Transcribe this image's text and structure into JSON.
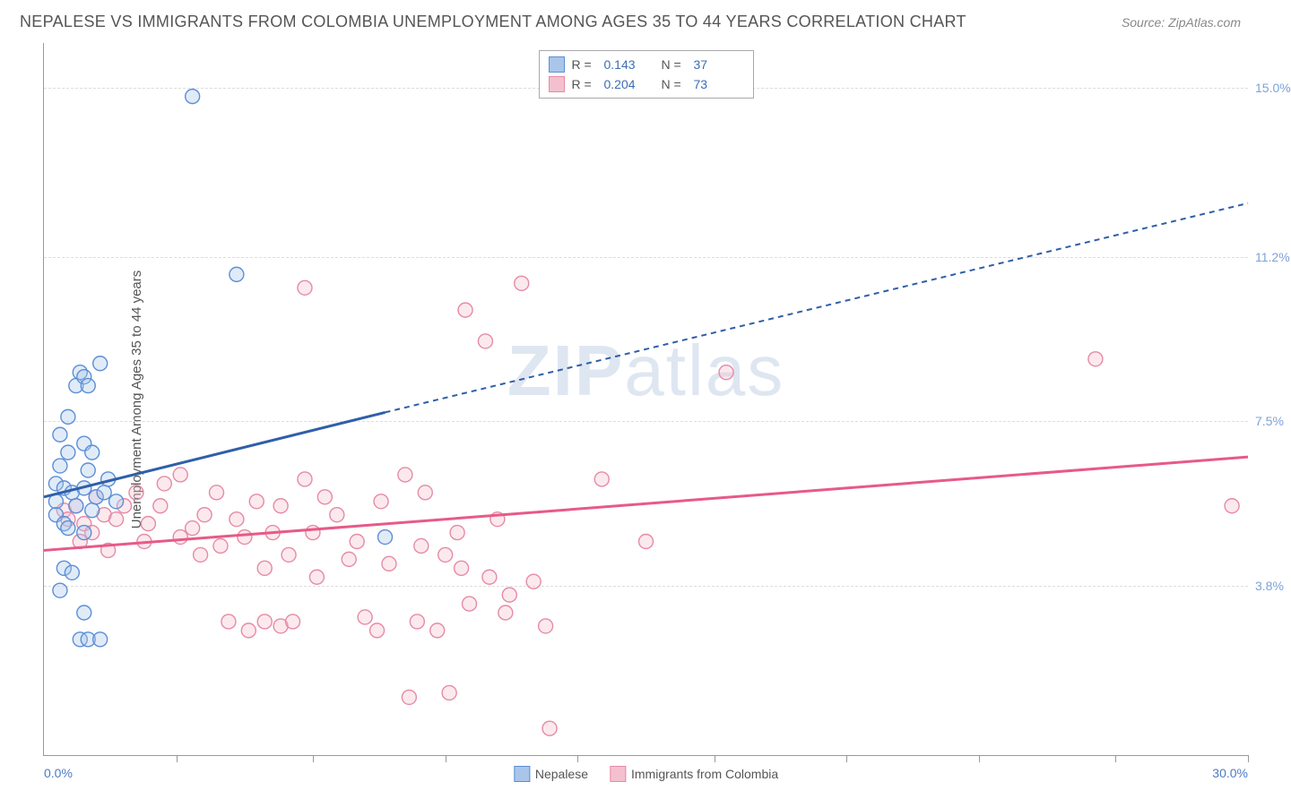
{
  "header": {
    "title": "NEPALESE VS IMMIGRANTS FROM COLOMBIA UNEMPLOYMENT AMONG AGES 35 TO 44 YEARS CORRELATION CHART",
    "source": "Source: ZipAtlas.com"
  },
  "chart": {
    "type": "scatter-with-regression",
    "ylabel": "Unemployment Among Ages 35 to 44 years",
    "watermark": "ZIPatlas",
    "xlim": [
      0,
      30
    ],
    "ylim": [
      0,
      16
    ],
    "x_ticks": [
      3.3,
      6.7,
      10,
      13.3,
      16.7,
      20,
      23.3,
      26.7,
      30
    ],
    "y_gridlines": [
      3.8,
      7.5,
      11.2,
      15.0
    ],
    "y_tick_labels": [
      "3.8%",
      "7.5%",
      "11.2%",
      "15.0%"
    ],
    "x_start_label": "0.0%",
    "x_end_label": "30.0%",
    "background_color": "#ffffff",
    "grid_color": "#dddddd",
    "axis_color": "#999999",
    "marker_radius": 8,
    "marker_fill_opacity": 0.35,
    "marker_stroke_width": 1.4,
    "series": [
      {
        "name": "Nepalese",
        "color_stroke": "#5b8fd6",
        "color_fill": "#a9c6ea",
        "R": "0.143",
        "N": "37",
        "trend": {
          "x1": 0,
          "y1": 5.8,
          "x2_solid": 8.5,
          "y2_solid": 7.7,
          "x2": 30,
          "y2": 12.4,
          "stroke": "#2f5fa8",
          "width": 3
        },
        "points": [
          [
            0.3,
            6.1
          ],
          [
            0.3,
            5.7
          ],
          [
            0.3,
            5.4
          ],
          [
            0.5,
            5.2
          ],
          [
            0.5,
            6.0
          ],
          [
            0.6,
            6.8
          ],
          [
            0.4,
            7.2
          ],
          [
            0.7,
            5.9
          ],
          [
            0.8,
            5.6
          ],
          [
            0.6,
            5.1
          ],
          [
            0.5,
            4.2
          ],
          [
            0.4,
            3.7
          ],
          [
            0.9,
            2.6
          ],
          [
            1.1,
            2.6
          ],
          [
            1.4,
            2.6
          ],
          [
            1.0,
            3.2
          ],
          [
            1.1,
            6.4
          ],
          [
            1.0,
            7.0
          ],
          [
            0.8,
            8.3
          ],
          [
            0.9,
            8.6
          ],
          [
            1.0,
            8.5
          ],
          [
            1.2,
            5.5
          ],
          [
            1.3,
            5.8
          ],
          [
            1.5,
            5.9
          ],
          [
            1.6,
            6.2
          ],
          [
            1.2,
            6.8
          ],
          [
            1.0,
            6.0
          ],
          [
            1.8,
            5.7
          ],
          [
            0.4,
            6.5
          ],
          [
            0.6,
            7.6
          ],
          [
            1.1,
            8.3
          ],
          [
            1.0,
            5.0
          ],
          [
            3.7,
            14.8
          ],
          [
            4.8,
            10.8
          ],
          [
            8.5,
            4.9
          ],
          [
            1.4,
            8.8
          ],
          [
            0.7,
            4.1
          ]
        ]
      },
      {
        "name": "Immigrants from Colombia",
        "color_stroke": "#e68aa5",
        "color_fill": "#f4c0cf",
        "R": "0.204",
        "N": "73",
        "trend": {
          "x1": 0,
          "y1": 4.6,
          "x2_solid": 30,
          "y2_solid": 6.7,
          "x2": 30,
          "y2": 6.7,
          "stroke": "#e75a87",
          "width": 3
        },
        "points": [
          [
            0.5,
            5.5
          ],
          [
            0.6,
            5.3
          ],
          [
            0.8,
            5.6
          ],
          [
            1.0,
            5.2
          ],
          [
            1.2,
            5.0
          ],
          [
            1.3,
            5.8
          ],
          [
            1.5,
            5.4
          ],
          [
            1.8,
            5.3
          ],
          [
            1.6,
            4.6
          ],
          [
            2.0,
            5.6
          ],
          [
            2.3,
            5.9
          ],
          [
            2.5,
            4.8
          ],
          [
            2.6,
            5.2
          ],
          [
            2.9,
            5.6
          ],
          [
            3.0,
            6.1
          ],
          [
            3.4,
            6.3
          ],
          [
            3.4,
            4.9
          ],
          [
            3.7,
            5.1
          ],
          [
            3.9,
            4.5
          ],
          [
            4.0,
            5.4
          ],
          [
            4.3,
            5.9
          ],
          [
            4.4,
            4.7
          ],
          [
            4.6,
            3.0
          ],
          [
            4.8,
            5.3
          ],
          [
            5.0,
            4.9
          ],
          [
            5.1,
            2.8
          ],
          [
            5.3,
            5.7
          ],
          [
            5.5,
            4.2
          ],
          [
            5.5,
            3.0
          ],
          [
            5.7,
            5.0
          ],
          [
            5.9,
            2.9
          ],
          [
            5.9,
            5.6
          ],
          [
            6.1,
            4.5
          ],
          [
            6.2,
            3.0
          ],
          [
            6.5,
            6.2
          ],
          [
            6.5,
            10.5
          ],
          [
            6.7,
            5.0
          ],
          [
            6.8,
            4.0
          ],
          [
            7.0,
            5.8
          ],
          [
            7.3,
            5.4
          ],
          [
            7.6,
            4.4
          ],
          [
            7.8,
            4.8
          ],
          [
            8.0,
            3.1
          ],
          [
            8.3,
            2.8
          ],
          [
            8.4,
            5.7
          ],
          [
            8.6,
            4.3
          ],
          [
            9.0,
            6.3
          ],
          [
            9.1,
            1.3
          ],
          [
            9.3,
            3.0
          ],
          [
            9.4,
            4.7
          ],
          [
            9.5,
            5.9
          ],
          [
            9.8,
            2.8
          ],
          [
            10.0,
            4.5
          ],
          [
            10.1,
            1.4
          ],
          [
            10.3,
            5.0
          ],
          [
            10.4,
            4.2
          ],
          [
            10.5,
            10.0
          ],
          [
            10.6,
            3.4
          ],
          [
            11.0,
            9.3
          ],
          [
            11.1,
            4.0
          ],
          [
            11.3,
            5.3
          ],
          [
            11.5,
            3.2
          ],
          [
            11.6,
            3.6
          ],
          [
            11.9,
            10.6
          ],
          [
            12.2,
            3.9
          ],
          [
            12.5,
            2.9
          ],
          [
            12.6,
            0.6
          ],
          [
            13.9,
            6.2
          ],
          [
            15.0,
            4.8
          ],
          [
            17.0,
            8.6
          ],
          [
            26.2,
            8.9
          ],
          [
            29.6,
            5.6
          ],
          [
            0.9,
            4.8
          ]
        ]
      }
    ]
  },
  "legend_bottom": {
    "items": [
      {
        "label": "Nepalese",
        "stroke": "#5b8fd6",
        "fill": "#a9c6ea"
      },
      {
        "label": "Immigrants from Colombia",
        "stroke": "#e68aa5",
        "fill": "#f4c0cf"
      }
    ]
  }
}
